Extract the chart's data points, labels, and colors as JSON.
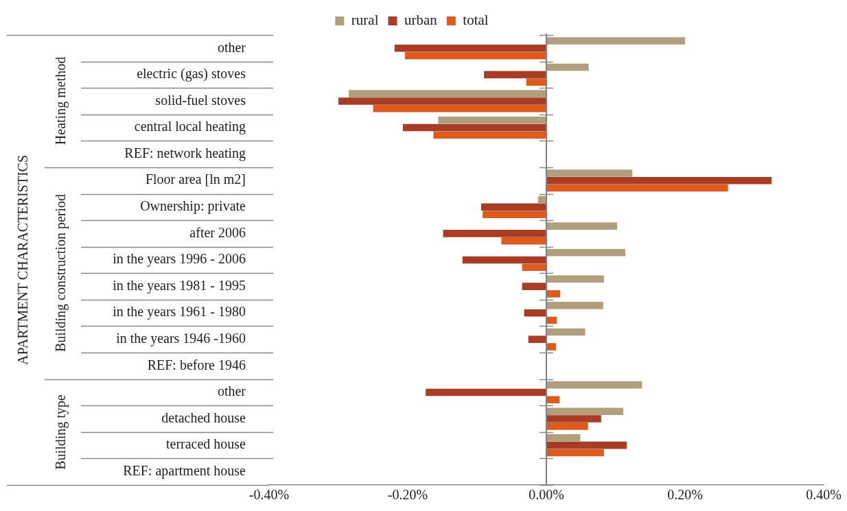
{
  "chart_data": {
    "type": "bar",
    "orientation": "horizontal",
    "legend": "top",
    "grid": false,
    "annotations": [
      "APARTMENT CHARACTERISTICS",
      "Heating method",
      "Building construction period",
      "Building type"
    ],
    "ref_lines": [
      {
        "axis": "x",
        "value": 0,
        "color": "#808080"
      }
    ],
    "categories": [
      "other",
      "electric (gas) stoves",
      "solid-fuel stoves",
      "central local heating",
      "REF: network heating",
      "Floor area [ln m2]",
      "Ownership: private",
      "after 2006",
      "in the years 1996 - 2006",
      "in the years 1981 - 1995",
      "in the years 1961 - 1980",
      "in the years 1946 -1960",
      "REF: before 1946",
      "other",
      "detached house",
      "terraced house",
      "REF: apartment house"
    ],
    "series": [
      {
        "name": "rural",
        "color": "#b09e7c",
        "values": [
          0.2,
          0.061,
          -0.285,
          -0.156,
          0,
          0.124,
          -0.012,
          0.102,
          0.114,
          0.083,
          0.082,
          0.056,
          0,
          0.138,
          0.111,
          0.049,
          0
        ]
      },
      {
        "name": "urban",
        "color": "#a93c25",
        "values": [
          -0.219,
          -0.09,
          -0.3,
          -0.207,
          0,
          0.325,
          -0.094,
          -0.149,
          -0.121,
          -0.035,
          -0.032,
          -0.026,
          0,
          -0.174,
          0.079,
          0.116,
          0
        ]
      },
      {
        "name": "total",
        "color": "#dd5b1e",
        "values": [
          -0.204,
          -0.029,
          -0.25,
          -0.163,
          0,
          0.262,
          -0.092,
          -0.065,
          -0.035,
          0.02,
          0.015,
          0.014,
          0,
          0.019,
          0.06,
          0.083,
          0
        ]
      }
    ],
    "xlim": [
      -0.4,
      0.4
    ],
    "xticks": [
      {
        "value": -0.4,
        "label": "-0.40%"
      },
      {
        "value": -0.2,
        "label": "-0.20%"
      },
      {
        "value": 0,
        "label": "0.00%"
      },
      {
        "value": 0.2,
        "label": "0.20%"
      },
      {
        "value": 0.4,
        "label": "0.40%"
      }
    ]
  }
}
